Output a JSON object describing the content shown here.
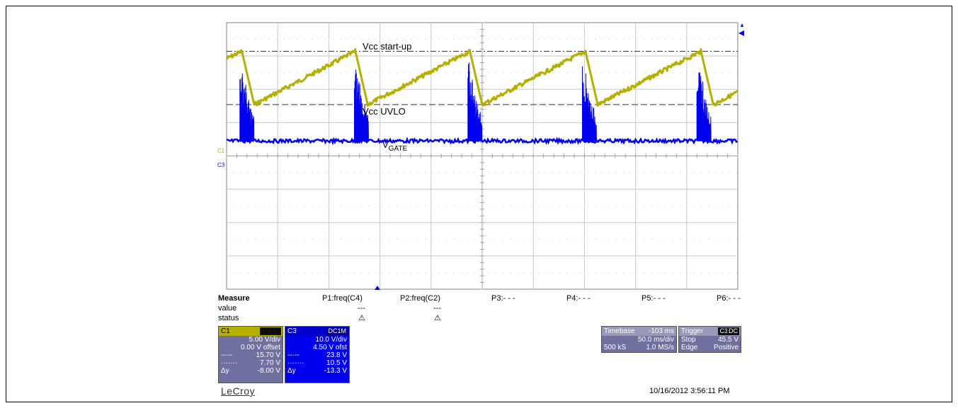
{
  "chart_data": {
    "type": "line",
    "title": "",
    "xlabel": "",
    "ylabel": "",
    "xlim": [
      -0.353,
      0.147
    ],
    "divisions": {
      "x": 10,
      "y": 8
    },
    "grid": true,
    "series": [
      {
        "name": "C1",
        "color": "#b5b000",
        "volts_per_div": 5.0,
        "offset_V": 0.0,
        "shape": "sawtooth",
        "x": [
          -0.353,
          -0.338,
          -0.326,
          -0.227,
          -0.215,
          -0.115,
          -0.103,
          -0.002,
          0.01,
          0.111,
          0.123,
          0.147
        ],
        "y": [
          14.6,
          15.7,
          7.7,
          15.7,
          7.7,
          15.7,
          7.7,
          15.7,
          7.7,
          15.7,
          7.7,
          9.6
        ]
      },
      {
        "name": "C3",
        "color": "#0000ee",
        "volts_per_div": 10.0,
        "offset_V": 4.5,
        "shape": "burst",
        "baseline_V": 0.0,
        "burst_start_x": [
          -0.34,
          -0.228,
          -0.117,
          -0.005,
          0.107
        ],
        "burst_duration_s": 0.014,
        "burst_peak_V": 23.8
      }
    ],
    "references": [
      {
        "label": "Vcc start-up",
        "value_V": 15.7,
        "style": "dash-dot"
      },
      {
        "label": "Vcc UVLO",
        "value_V": 7.7,
        "style": "dashed"
      }
    ],
    "annotations": {
      "vcc_startup": "Vcc start-up",
      "vcc_uvlo": "Vcc UVLO",
      "vgate_main": "V",
      "vgate_sub": "GATE"
    },
    "channel_markers": {
      "c1": "C1",
      "c3": "C3"
    }
  },
  "measure": {
    "title": "Measure",
    "row_labels": [
      "value",
      "status"
    ],
    "params": [
      {
        "name": "P1:freq(C4)",
        "value": "---",
        "status": "⚠"
      },
      {
        "name": "P2:freq(C2)",
        "value": "---",
        "status": "⚠"
      },
      {
        "name": "P3:- - -",
        "value": "",
        "status": ""
      },
      {
        "name": "P4:- - -",
        "value": "",
        "status": ""
      },
      {
        "name": "P5:- - -",
        "value": "",
        "status": ""
      },
      {
        "name": "P6:- - -",
        "value": "",
        "status": ""
      }
    ]
  },
  "channels": {
    "c1": {
      "label": "C1",
      "coupling": "DC1M",
      "vdiv": "5.00 V/div",
      "offset": "0.00 V offset",
      "cursor1_sym": "--·--",
      "cursor1": "15.70 V",
      "cursor2_sym": "·······",
      "cursor2": "7.70 V",
      "delta_sym": "Δy",
      "delta": "-8.00 V"
    },
    "c3": {
      "label": "C3",
      "coupling": "DC1M",
      "vdiv": "10.0 V/div",
      "offset": "4.50 V ofst",
      "cursor1_sym": "--·--",
      "cursor1": "23.8 V",
      "cursor2_sym": "·······",
      "cursor2": "10.5 V",
      "delta_sym": "Δy",
      "delta": "-13.3 V"
    }
  },
  "timebase": {
    "label": "Timebase",
    "delay": "-103 ms",
    "tdiv": "50.0 ms/div",
    "samples": "500 kS",
    "rate": "1.0 MS/s"
  },
  "trigger": {
    "label": "Trigger",
    "source": "C3",
    "coupling": "DC",
    "mode": "Stop",
    "level": "45.5 V",
    "type": "Edge",
    "slope": "Positive"
  },
  "brand": "LeCroy",
  "timestamp": "10/16/2012 3:56:11 PM",
  "colors": {
    "c1": "#b5b000",
    "c3": "#0000ee",
    "grid": "#c8c8c8"
  }
}
